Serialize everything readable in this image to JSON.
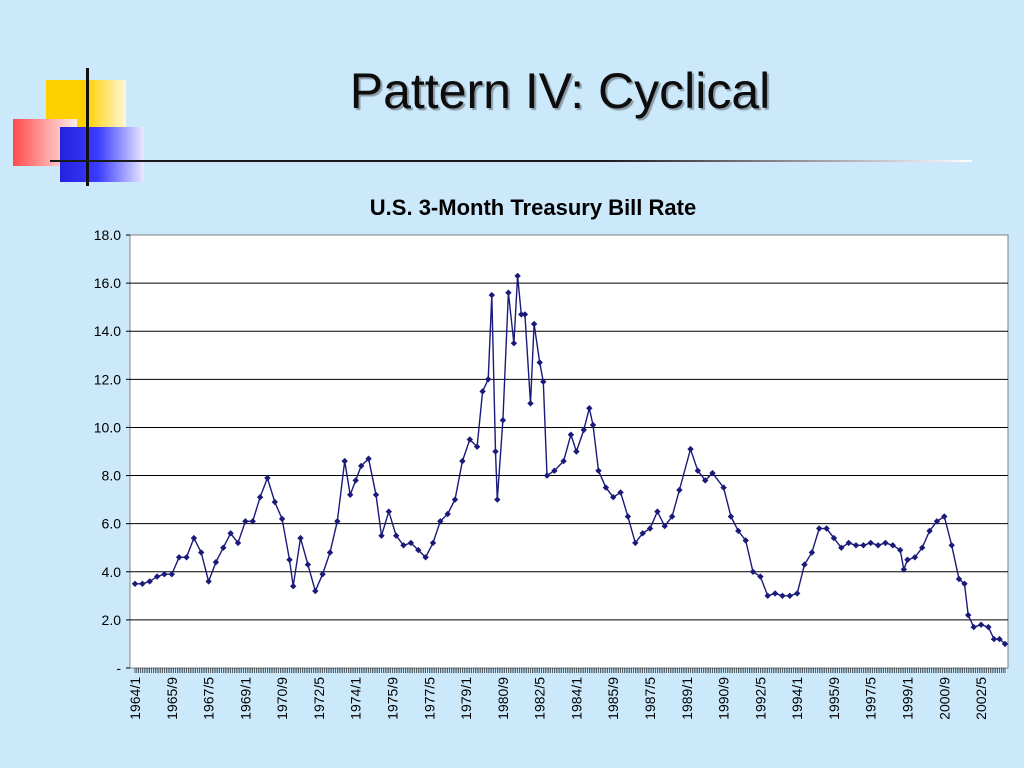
{
  "slide": {
    "title": "Pattern IV: Cyclical"
  },
  "chart_data": {
    "type": "line",
    "title": "U.S. 3-Month Treasury Bill Rate",
    "xlabel": "",
    "ylabel": "",
    "ylim": [
      0,
      18
    ],
    "grid": "horizontal",
    "legend": "none",
    "y_ticks": [
      "-",
      "2.0",
      "4.0",
      "6.0",
      "8.0",
      "10.0",
      "12.0",
      "14.0",
      "16.0",
      "18.0"
    ],
    "x_tick_labels": [
      "1964/1",
      "1965/9",
      "1967/5",
      "1969/1",
      "1970/9",
      "1972/5",
      "1974/1",
      "1975/9",
      "1977/5",
      "1979/1",
      "1980/9",
      "1982/5",
      "1984/1",
      "1985/9",
      "1987/5",
      "1989/1",
      "1990/9",
      "1992/5",
      "1994/1",
      "1995/9",
      "1997/5",
      "1999/1",
      "2000/9",
      "2002/5"
    ],
    "series_color": "#1a1a7a",
    "series": [
      {
        "points": [
          [
            "1964/1",
            3.5
          ],
          [
            "1964/5",
            3.5
          ],
          [
            "1964/9",
            3.6
          ],
          [
            "1965/1",
            3.8
          ],
          [
            "1965/5",
            3.9
          ],
          [
            "1965/9",
            3.9
          ],
          [
            "1966/1",
            4.6
          ],
          [
            "1966/5",
            4.6
          ],
          [
            "1966/9",
            5.4
          ],
          [
            "1967/1",
            4.8
          ],
          [
            "1967/5",
            3.6
          ],
          [
            "1967/9",
            4.4
          ],
          [
            "1968/1",
            5.0
          ],
          [
            "1968/5",
            5.6
          ],
          [
            "1968/9",
            5.2
          ],
          [
            "1969/1",
            6.1
          ],
          [
            "1969/5",
            6.1
          ],
          [
            "1969/9",
            7.1
          ],
          [
            "1970/1",
            7.9
          ],
          [
            "1970/5",
            6.9
          ],
          [
            "1970/9",
            6.2
          ],
          [
            "1971/1",
            4.5
          ],
          [
            "1971/3",
            3.4
          ],
          [
            "1971/7",
            5.4
          ],
          [
            "1971/11",
            4.3
          ],
          [
            "1972/3",
            3.2
          ],
          [
            "1972/7",
            3.9
          ],
          [
            "1972/11",
            4.8
          ],
          [
            "1973/3",
            6.1
          ],
          [
            "1973/7",
            8.6
          ],
          [
            "1973/10",
            7.2
          ],
          [
            "1974/1",
            7.8
          ],
          [
            "1974/4",
            8.4
          ],
          [
            "1974/8",
            8.7
          ],
          [
            "1974/12",
            7.2
          ],
          [
            "1975/3",
            5.5
          ],
          [
            "1975/7",
            6.5
          ],
          [
            "1975/11",
            5.5
          ],
          [
            "1976/3",
            5.1
          ],
          [
            "1976/7",
            5.2
          ],
          [
            "1976/11",
            4.9
          ],
          [
            "1977/3",
            4.6
          ],
          [
            "1977/7",
            5.2
          ],
          [
            "1977/11",
            6.1
          ],
          [
            "1978/3",
            6.4
          ],
          [
            "1978/7",
            7.0
          ],
          [
            "1978/11",
            8.6
          ],
          [
            "1979/3",
            9.5
          ],
          [
            "1979/7",
            9.2
          ],
          [
            "1979/10",
            11.5
          ],
          [
            "1980/1",
            12.0
          ],
          [
            "1980/3",
            15.5
          ],
          [
            "1980/5",
            9.0
          ],
          [
            "1980/6",
            7.0
          ],
          [
            "1980/9",
            10.3
          ],
          [
            "1980/12",
            15.6
          ],
          [
            "1981/3",
            13.5
          ],
          [
            "1981/5",
            16.3
          ],
          [
            "1981/7",
            14.7
          ],
          [
            "1981/9",
            14.7
          ],
          [
            "1981/12",
            11.0
          ],
          [
            "1982/2",
            14.3
          ],
          [
            "1982/5",
            12.7
          ],
          [
            "1982/7",
            11.9
          ],
          [
            "1982/9",
            8.0
          ],
          [
            "1983/1",
            8.2
          ],
          [
            "1983/6",
            8.6
          ],
          [
            "1983/10",
            9.7
          ],
          [
            "1984/1",
            9.0
          ],
          [
            "1984/5",
            9.9
          ],
          [
            "1984/8",
            10.8
          ],
          [
            "1984/10",
            10.1
          ],
          [
            "1985/1",
            8.2
          ],
          [
            "1985/5",
            7.5
          ],
          [
            "1985/9",
            7.1
          ],
          [
            "1986/1",
            7.3
          ],
          [
            "1986/5",
            6.3
          ],
          [
            "1986/9",
            5.2
          ],
          [
            "1987/1",
            5.6
          ],
          [
            "1987/5",
            5.8
          ],
          [
            "1987/9",
            6.5
          ],
          [
            "1988/1",
            5.9
          ],
          [
            "1988/5",
            6.3
          ],
          [
            "1988/9",
            7.4
          ],
          [
            "1989/3",
            9.1
          ],
          [
            "1989/7",
            8.2
          ],
          [
            "1989/11",
            7.8
          ],
          [
            "1990/3",
            8.1
          ],
          [
            "1990/9",
            7.5
          ],
          [
            "1991/1",
            6.3
          ],
          [
            "1991/5",
            5.7
          ],
          [
            "1991/9",
            5.3
          ],
          [
            "1992/1",
            4.0
          ],
          [
            "1992/5",
            3.8
          ],
          [
            "1992/9",
            3.0
          ],
          [
            "1993/1",
            3.1
          ],
          [
            "1993/5",
            3.0
          ],
          [
            "1993/9",
            3.0
          ],
          [
            "1994/1",
            3.1
          ],
          [
            "1994/5",
            4.3
          ],
          [
            "1994/9",
            4.8
          ],
          [
            "1995/1",
            5.8
          ],
          [
            "1995/5",
            5.8
          ],
          [
            "1995/9",
            5.4
          ],
          [
            "1996/1",
            5.0
          ],
          [
            "1996/5",
            5.2
          ],
          [
            "1996/9",
            5.1
          ],
          [
            "1997/1",
            5.1
          ],
          [
            "1997/5",
            5.2
          ],
          [
            "1997/9",
            5.1
          ],
          [
            "1998/1",
            5.2
          ],
          [
            "1998/5",
            5.1
          ],
          [
            "1998/9",
            4.9
          ],
          [
            "1998/11",
            4.1
          ],
          [
            "1999/1",
            4.5
          ],
          [
            "1999/5",
            4.6
          ],
          [
            "1999/9",
            5.0
          ],
          [
            "2000/1",
            5.7
          ],
          [
            "2000/5",
            6.1
          ],
          [
            "2000/9",
            6.3
          ],
          [
            "2001/1",
            5.1
          ],
          [
            "2001/5",
            3.7
          ],
          [
            "2001/8",
            3.5
          ],
          [
            "2001/10",
            2.2
          ],
          [
            "2002/1",
            1.7
          ],
          [
            "2002/5",
            1.8
          ],
          [
            "2002/9",
            1.7
          ],
          [
            "2002/12",
            1.2
          ],
          [
            "2003/3",
            1.2
          ],
          [
            "2003/6",
            1.0
          ]
        ]
      }
    ]
  }
}
